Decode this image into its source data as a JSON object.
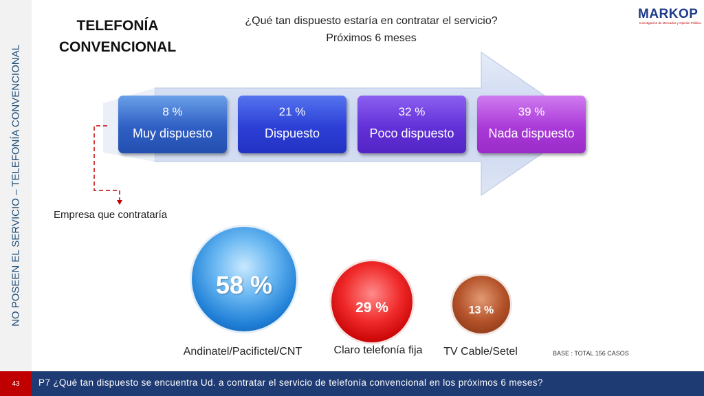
{
  "sidebar": {
    "vertical_title": "NO POSEEN EL SERVICIO – TELEFONÍA CONVENCIONAL"
  },
  "slide": {
    "title_line1": "TELEFONÍA",
    "title_line2": "CONVENCIONAL",
    "question_line1": "¿Qué tan dispuesto estaría en contratar el servicio?",
    "question_line2": "Próximos 6 meses"
  },
  "logo": {
    "text": "MARKOP",
    "tagline": "Investigación de Mercados y Opinión Pública"
  },
  "disposition": [
    {
      "percent": "8 %",
      "label": "Muy dispuesto"
    },
    {
      "percent": "21 %",
      "label": "Dispuesto"
    },
    {
      "percent": "32 %",
      "label": "Poco dispuesto"
    },
    {
      "percent": "39 %",
      "label": "Nada dispuesto"
    }
  ],
  "empresa_label": "Empresa que contrataría",
  "companies": [
    {
      "percent": "58 %",
      "name": "Andinatel/Pacifictel/CNT",
      "color": "#1f7fd6"
    },
    {
      "percent": "29 %",
      "name": "Claro telefonía fija",
      "color": "#e01515"
    },
    {
      "percent": "13 %",
      "name": "TV Cable/Setel",
      "color": "#a0441c"
    }
  ],
  "base_note": "BASE   : TOTAL  156 CASOS",
  "footer": {
    "page_number": "43",
    "question": "P7 ¿Qué tan dispuesto se encuentra Ud. a contratar el servicio de telefonía convencional en los próximos 6 meses?"
  },
  "colors": {
    "footer_bg": "#1f3b73",
    "page_badge": "#c00000",
    "sidebar_text": "#1f4e79"
  }
}
